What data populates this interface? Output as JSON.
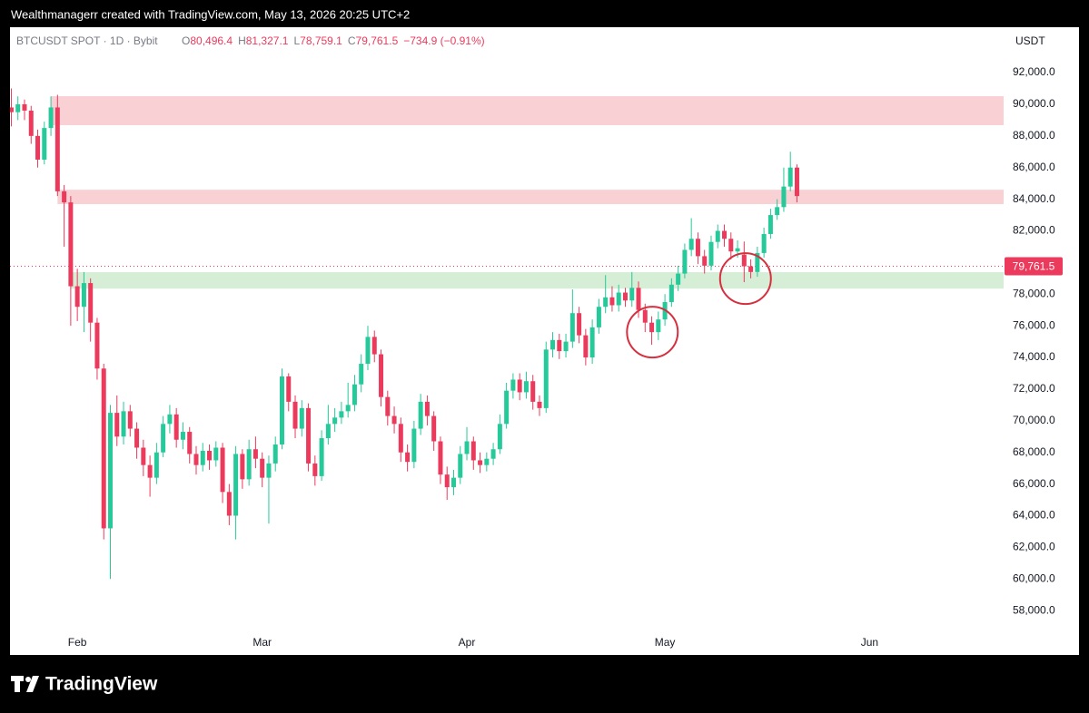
{
  "top_bar": {
    "text": "Wealthmanagerr created with TradingView.com, May 13, 2026 20:25 UTC+2"
  },
  "header": {
    "symbol": "BTCUSDT SPOT · 1D · Bybit",
    "ohlc": [
      {
        "key": "O",
        "value": "80,496.4"
      },
      {
        "key": "H",
        "value": "81,327.1"
      },
      {
        "key": "L",
        "value": "78,759.1"
      },
      {
        "key": "C",
        "value": "79,761.5"
      }
    ],
    "change": "−734.9 (−0.91%)",
    "currency": "USDT"
  },
  "footer": {
    "brand": "TradingView"
  },
  "chart_data": {
    "type": "candlestick",
    "up_color": "#26c99a",
    "down_color": "#ec3a5c",
    "x": [
      21,
      22,
      23,
      24,
      25,
      26,
      27,
      28,
      29,
      30,
      31,
      32,
      33,
      34,
      35,
      36,
      37,
      38,
      39,
      40,
      41,
      42,
      43,
      44,
      45,
      46,
      47,
      48,
      49,
      50,
      51,
      52,
      53,
      54,
      55,
      56,
      57,
      58,
      59,
      60,
      61,
      62,
      63,
      64,
      65,
      66,
      67,
      68,
      69,
      70,
      71,
      72,
      73,
      74,
      75,
      76,
      77,
      78,
      79,
      80,
      81,
      82,
      83,
      84,
      85,
      86,
      87,
      88,
      89,
      90,
      91,
      92,
      93,
      94,
      95,
      96,
      97,
      98,
      99,
      100,
      101,
      102,
      103,
      104,
      105,
      106,
      107,
      108,
      109,
      110,
      111,
      112,
      113,
      114,
      115,
      116,
      117,
      118,
      119,
      120,
      121,
      122,
      123,
      124,
      125,
      126,
      127,
      128,
      129,
      130,
      131,
      132,
      133,
      134,
      135,
      136,
      137,
      138,
      139,
      140
    ],
    "open": [
      89800,
      89500,
      90000,
      89600,
      88000,
      86500,
      88500,
      89800,
      84500,
      83800,
      78500,
      77200,
      78700,
      76200,
      73300,
      63200,
      70500,
      69000,
      70600,
      69500,
      68300,
      67200,
      66400,
      68000,
      69800,
      70400,
      68800,
      69300,
      67900,
      67200,
      68100,
      67500,
      68300,
      65500,
      64000,
      67900,
      66300,
      68200,
      67600,
      66400,
      67300,
      68500,
      72800,
      71200,
      69500,
      70800,
      67300,
      66500,
      68900,
      69800,
      70200,
      70600,
      71000,
      72300,
      73600,
      75300,
      74200,
      71500,
      70300,
      69800,
      68000,
      67400,
      69500,
      71200,
      70300,
      68700,
      66600,
      65800,
      66400,
      67900,
      68700,
      67500,
      67200,
      67600,
      68200,
      69800,
      71900,
      72600,
      71800,
      72500,
      71200,
      70800,
      74500,
      75100,
      74400,
      75000,
      76800,
      75400,
      74000,
      75900,
      77200,
      77800,
      77300,
      78100,
      77600,
      78400,
      77000,
      76200,
      75600,
      76400,
      77500,
      78600,
      79300,
      80800,
      81500,
      80400,
      79800,
      81300,
      82000,
      81500,
      80700,
      80496.4,
      79761.5,
      79400,
      80600,
      81800,
      83000,
      83500,
      84800,
      86000
    ],
    "high": [
      91000,
      90500,
      90300,
      89900,
      88400,
      88900,
      90500,
      90600,
      84900,
      84200,
      79600,
      79400,
      79000,
      76500,
      73600,
      71000,
      71600,
      71200,
      71000,
      69900,
      68800,
      67800,
      68600,
      70300,
      71000,
      70800,
      69900,
      69600,
      68400,
      68600,
      68500,
      68700,
      68600,
      66000,
      68400,
      68200,
      68800,
      69000,
      68000,
      67800,
      69000,
      73300,
      73000,
      71600,
      71300,
      71100,
      67800,
      69400,
      71000,
      70800,
      71200,
      72400,
      72900,
      74200,
      76000,
      75700,
      74500,
      71900,
      70900,
      70200,
      68500,
      70000,
      71700,
      71600,
      70600,
      69000,
      67100,
      66900,
      68400,
      69600,
      69000,
      68000,
      68000,
      68600,
      70400,
      72400,
      73000,
      73000,
      73100,
      72900,
      71600,
      75000,
      75600,
      75500,
      75500,
      78300,
      77200,
      75800,
      76400,
      77700,
      79200,
      78500,
      78600,
      78400,
      79400,
      78800,
      77400,
      76600,
      76900,
      78000,
      79000,
      79800,
      81200,
      82800,
      81900,
      80800,
      81700,
      82400,
      82400,
      81900,
      81400,
      81327.1,
      80200,
      81000,
      82200,
      83400,
      84000,
      86000,
      87000,
      86200
    ],
    "low": [
      88600,
      89000,
      89000,
      87500,
      86000,
      86200,
      88000,
      84200,
      81000,
      76000,
      76300,
      75600,
      75000,
      72600,
      62500,
      60000,
      68400,
      68500,
      69000,
      67600,
      66500,
      65200,
      66000,
      67700,
      69200,
      68300,
      68200,
      67300,
      66600,
      66800,
      66900,
      67100,
      64800,
      63400,
      62500,
      65700,
      65900,
      67000,
      65800,
      63500,
      66800,
      68200,
      70600,
      68900,
      69000,
      66800,
      65900,
      66200,
      68500,
      69300,
      69800,
      70200,
      70600,
      71800,
      73200,
      73700,
      70900,
      69700,
      69200,
      67400,
      66800,
      67000,
      69100,
      69700,
      68100,
      66000,
      65000,
      65300,
      66000,
      67500,
      66900,
      66700,
      66800,
      67200,
      67900,
      69500,
      71400,
      71300,
      71400,
      70700,
      70300,
      70500,
      74000,
      73900,
      74000,
      74600,
      74900,
      73500,
      73600,
      75500,
      76800,
      76900,
      76900,
      77200,
      77200,
      76500,
      75600,
      74800,
      75100,
      76000,
      77200,
      78200,
      79000,
      80400,
      79900,
      79300,
      79500,
      80900,
      81000,
      80200,
      80300,
      78759.1,
      79000,
      79100,
      80300,
      81500,
      82700,
      83200,
      84500,
      83800
    ],
    "close": [
      89500,
      90000,
      89600,
      88000,
      86500,
      88500,
      89800,
      84500,
      83800,
      78500,
      77200,
      78700,
      76200,
      73300,
      63200,
      70500,
      69000,
      70600,
      69500,
      68300,
      67200,
      66400,
      68000,
      69800,
      70400,
      68800,
      69300,
      67900,
      67200,
      68100,
      67500,
      68300,
      65500,
      64000,
      67900,
      66300,
      68200,
      67600,
      66400,
      67300,
      68500,
      72800,
      71200,
      69500,
      70800,
      67300,
      66500,
      68900,
      69800,
      70200,
      70600,
      71000,
      72300,
      73600,
      75300,
      74200,
      71500,
      70300,
      69800,
      68000,
      67400,
      69500,
      71200,
      70300,
      68700,
      66600,
      65800,
      66400,
      67900,
      68700,
      67500,
      67200,
      67600,
      68200,
      69800,
      71900,
      72600,
      71800,
      72500,
      71200,
      70800,
      74500,
      75100,
      74400,
      75000,
      76800,
      75400,
      74000,
      75900,
      77200,
      77800,
      77300,
      78100,
      77600,
      78400,
      77000,
      76200,
      75600,
      76400,
      77500,
      78600,
      79300,
      80800,
      81500,
      80400,
      79800,
      81300,
      82000,
      81500,
      80700,
      80900,
      79761.5,
      79400,
      80600,
      81800,
      83000,
      83500,
      84800,
      86000,
      84200
    ],
    "xlim": [
      20.8,
      171.3
    ],
    "xticks": [
      {
        "value": 31,
        "label": "Feb"
      },
      {
        "value": 59,
        "label": "Mar"
      },
      {
        "value": 90,
        "label": "Apr"
      },
      {
        "value": 120,
        "label": "May"
      },
      {
        "value": 151,
        "label": "Jun"
      }
    ],
    "ylim": [
      55200,
      94870
    ],
    "yticks": [
      {
        "value": 58000,
        "label": "58,000.0"
      },
      {
        "value": 60000,
        "label": "60,000.0"
      },
      {
        "value": 62000,
        "label": "62,000.0"
      },
      {
        "value": 64000,
        "label": "64,000.0"
      },
      {
        "value": 66000,
        "label": "66,000.0"
      },
      {
        "value": 68000,
        "label": "68,000.0"
      },
      {
        "value": 70000,
        "label": "70,000.0"
      },
      {
        "value": 72000,
        "label": "72,000.0"
      },
      {
        "value": 74000,
        "label": "74,000.0"
      },
      {
        "value": 76000,
        "label": "76,000.0"
      },
      {
        "value": 78000,
        "label": "78,000.0"
      },
      {
        "value": 80000,
        "label": "80,000.0"
      },
      {
        "value": 82000,
        "label": "82,000.0"
      },
      {
        "value": 84000,
        "label": "84,000.0"
      },
      {
        "value": 86000,
        "label": "86,000.0"
      },
      {
        "value": 88000,
        "label": "88,000.0"
      },
      {
        "value": 90000,
        "label": "90,000.0"
      },
      {
        "value": 92000,
        "label": "92,000.0"
      }
    ],
    "zones": [
      {
        "x0": 27,
        "low": 88680,
        "high": 90510,
        "color": "#f9d0d3"
      },
      {
        "x0": 28,
        "low": 83690,
        "high": 84600,
        "color": "#f9d0d3"
      },
      {
        "x0": 30,
        "low": 78350,
        "high": 79390,
        "color": "#d6eed6"
      }
    ],
    "circles": [
      {
        "x": 118.1,
        "y": 75600
      },
      {
        "x": 132.2,
        "y": 78985
      }
    ],
    "last_price": {
      "value": 79761.5,
      "label": "79,761.5"
    }
  }
}
